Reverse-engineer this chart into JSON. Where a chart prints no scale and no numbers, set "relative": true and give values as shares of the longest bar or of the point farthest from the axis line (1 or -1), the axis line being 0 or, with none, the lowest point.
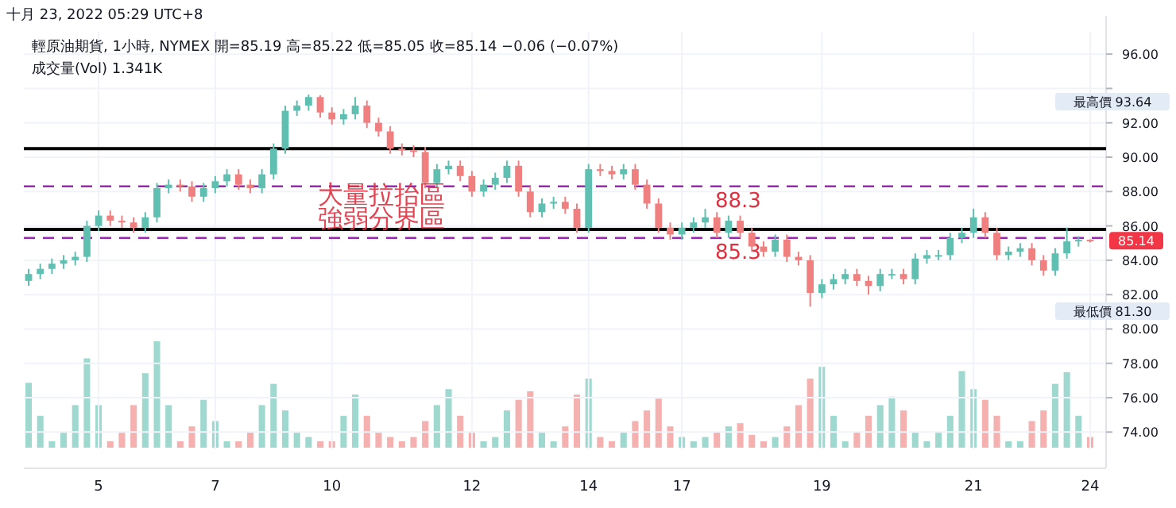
{
  "chart_data": [
    {
      "type": "candlestick",
      "title": "十月 23, 2022 05:29 UTC+8",
      "subtitle": "輕原油期貨, 1小時, NYMEX  開=85.19 高=85.22 低=85.05 收=85.14 −0.06 (−0.07%)",
      "annotations": [
        "成交量(Vol) 1.341K",
        "大量拉抬區",
        "強弱分界區",
        "最高價 93.64",
        "最低價 81.30",
        {
          "text": "85.14",
          "y": 85.14
        }
      ],
      "categories": [
        null,
        null,
        null,
        null,
        null,
        null,
        "5",
        null,
        null,
        null,
        null,
        null,
        null,
        null,
        null,
        null,
        "7",
        null,
        null,
        null,
        null,
        null,
        null,
        null,
        null,
        null,
        "10",
        null,
        null,
        null,
        null,
        null,
        null,
        null,
        null,
        null,
        null,
        null,
        "12",
        null,
        null,
        null,
        null,
        null,
        null,
        null,
        null,
        null,
        "14",
        null,
        null,
        null,
        null,
        null,
        null,
        null,
        "17",
        null,
        null,
        null,
        null,
        null,
        null,
        null,
        null,
        null,
        null,
        null,
        "19",
        null,
        null,
        null,
        null,
        null,
        null,
        null,
        null,
        null,
        null,
        null,
        null,
        "21",
        null,
        null,
        null,
        null,
        null,
        null,
        null,
        null,
        null,
        "24"
      ],
      "ohlc": [
        [
          82.8,
          83.5,
          82.5,
          83.2
        ],
        [
          83.2,
          83.8,
          82.9,
          83.5
        ],
        [
          83.5,
          84.1,
          83.2,
          83.8
        ],
        [
          83.8,
          84.3,
          83.5,
          84.0
        ],
        [
          84.0,
          84.5,
          83.7,
          84.2
        ],
        [
          84.2,
          86.3,
          83.9,
          86.0
        ],
        [
          86.0,
          86.9,
          85.7,
          86.6
        ],
        [
          86.6,
          86.9,
          86.0,
          86.3
        ],
        [
          86.3,
          86.6,
          85.9,
          86.2
        ],
        [
          86.2,
          86.5,
          85.6,
          85.9
        ],
        [
          85.9,
          86.8,
          85.6,
          86.5
        ],
        [
          86.5,
          88.5,
          86.2,
          88.2
        ],
        [
          88.2,
          88.7,
          87.9,
          88.4
        ],
        [
          88.4,
          88.7,
          88.0,
          88.3
        ],
        [
          88.3,
          88.6,
          87.4,
          87.7
        ],
        [
          87.7,
          88.5,
          87.4,
          88.2
        ],
        [
          88.2,
          88.9,
          87.9,
          88.6
        ],
        [
          88.6,
          89.3,
          88.3,
          89.0
        ],
        [
          89.0,
          89.3,
          88.1,
          88.4
        ],
        [
          88.4,
          88.7,
          87.9,
          88.2
        ],
        [
          88.2,
          89.3,
          87.9,
          89.0
        ],
        [
          89.0,
          90.8,
          88.7,
          90.5
        ],
        [
          90.5,
          93.0,
          90.2,
          92.7
        ],
        [
          92.7,
          93.3,
          92.4,
          93.0
        ],
        [
          93.0,
          93.64,
          92.7,
          93.5
        ],
        [
          93.5,
          93.6,
          92.3,
          92.6
        ],
        [
          92.6,
          92.9,
          91.9,
          92.2
        ],
        [
          92.2,
          92.8,
          91.9,
          92.5
        ],
        [
          92.5,
          93.5,
          92.2,
          93.0
        ],
        [
          93.0,
          93.3,
          91.7,
          92.0
        ],
        [
          92.0,
          92.3,
          91.2,
          91.5
        ],
        [
          91.5,
          91.8,
          90.2,
          90.5
        ],
        [
          90.5,
          90.8,
          90.1,
          90.4
        ],
        [
          90.4,
          90.7,
          90.0,
          90.3
        ],
        [
          90.3,
          90.6,
          88.2,
          88.5
        ],
        [
          88.5,
          89.6,
          88.2,
          89.3
        ],
        [
          89.3,
          89.8,
          89.0,
          89.5
        ],
        [
          89.5,
          89.8,
          88.6,
          88.9
        ],
        [
          88.9,
          89.2,
          87.7,
          88.0
        ],
        [
          88.0,
          88.7,
          87.7,
          88.4
        ],
        [
          88.4,
          89.1,
          88.1,
          88.8
        ],
        [
          88.8,
          89.8,
          88.5,
          89.5
        ],
        [
          89.5,
          89.8,
          87.7,
          88.0
        ],
        [
          88.0,
          88.3,
          86.5,
          86.8
        ],
        [
          86.8,
          87.6,
          86.5,
          87.3
        ],
        [
          87.3,
          87.7,
          87.0,
          87.4
        ],
        [
          87.4,
          87.7,
          86.7,
          87.0
        ],
        [
          87.0,
          87.3,
          85.6,
          85.9
        ],
        [
          85.9,
          89.6,
          85.6,
          89.3
        ],
        [
          89.3,
          89.6,
          88.9,
          89.2
        ],
        [
          89.2,
          89.5,
          88.7,
          89.0
        ],
        [
          89.0,
          89.6,
          88.7,
          89.3
        ],
        [
          89.3,
          89.6,
          88.1,
          88.4
        ],
        [
          88.4,
          88.7,
          87.0,
          87.3
        ],
        [
          87.3,
          87.6,
          85.6,
          85.9
        ],
        [
          85.9,
          86.2,
          85.2,
          85.5
        ],
        [
          85.5,
          86.2,
          85.2,
          85.9
        ],
        [
          85.9,
          86.5,
          85.6,
          86.2
        ],
        [
          86.2,
          87.0,
          85.9,
          86.5
        ],
        [
          86.5,
          86.8,
          85.3,
          85.6
        ],
        [
          85.6,
          86.6,
          85.3,
          86.3
        ],
        [
          86.3,
          86.6,
          85.3,
          85.6
        ],
        [
          85.6,
          85.9,
          84.5,
          84.8
        ],
        [
          84.8,
          85.1,
          84.2,
          84.5
        ],
        [
          84.5,
          85.5,
          84.2,
          85.2
        ],
        [
          85.2,
          85.5,
          83.9,
          84.2
        ],
        [
          84.2,
          84.5,
          83.7,
          84.0
        ],
        [
          84.0,
          84.3,
          81.3,
          82.1
        ],
        [
          82.1,
          82.9,
          81.8,
          82.6
        ],
        [
          82.6,
          83.2,
          82.3,
          82.9
        ],
        [
          82.9,
          83.5,
          82.6,
          83.2
        ],
        [
          83.2,
          83.5,
          82.5,
          82.8
        ],
        [
          82.8,
          83.1,
          82.0,
          82.5
        ],
        [
          82.5,
          83.5,
          82.2,
          83.2
        ],
        [
          83.2,
          83.5,
          82.9,
          83.2
        ],
        [
          83.2,
          83.5,
          82.6,
          82.9
        ],
        [
          82.9,
          84.4,
          82.6,
          84.1
        ],
        [
          84.1,
          84.6,
          83.8,
          84.3
        ],
        [
          84.3,
          84.6,
          84.0,
          84.3
        ],
        [
          84.3,
          85.6,
          84.0,
          85.3
        ],
        [
          85.3,
          85.9,
          85.0,
          85.6
        ],
        [
          85.6,
          87.0,
          85.3,
          86.5
        ],
        [
          86.5,
          86.8,
          85.3,
          85.6
        ],
        [
          85.6,
          85.9,
          84.0,
          84.3
        ],
        [
          84.3,
          84.8,
          84.0,
          84.5
        ],
        [
          84.5,
          85.0,
          84.2,
          84.7
        ],
        [
          84.7,
          85.0,
          83.7,
          84.0
        ],
        [
          84.0,
          84.3,
          83.1,
          83.4
        ],
        [
          83.4,
          84.7,
          83.1,
          84.4
        ],
        [
          84.4,
          85.9,
          84.1,
          85.1
        ],
        [
          85.1,
          85.4,
          84.8,
          85.19
        ],
        [
          85.19,
          85.22,
          85.05,
          85.14
        ]
      ],
      "colors": [
        "#5fbfb0",
        "#5fbfb0",
        "#5fbfb0",
        "#5fbfb0",
        "#5fbfb0",
        "#5fbfb0",
        "#5fbfb0",
        "#f08080",
        "#f08080",
        "#f08080",
        "#5fbfb0",
        "#5fbfb0",
        "#5fbfb0",
        "#f08080",
        "#f08080",
        "#5fbfb0",
        "#5fbfb0",
        "#5fbfb0",
        "#f08080",
        "#f08080",
        "#5fbfb0",
        "#5fbfb0",
        "#5fbfb0",
        "#5fbfb0",
        "#5fbfb0",
        "#f08080",
        "#f08080",
        "#5fbfb0",
        "#5fbfb0",
        "#f08080",
        "#f08080",
        "#f08080",
        "#f08080",
        "#f08080",
        "#f08080",
        "#5fbfb0",
        "#5fbfb0",
        "#f08080",
        "#f08080",
        "#5fbfb0",
        "#5fbfb0",
        "#5fbfb0",
        "#f08080",
        "#f08080",
        "#5fbfb0",
        "#5fbfb0",
        "#f08080",
        "#f08080",
        "#5fbfb0",
        "#f08080",
        "#f08080",
        "#5fbfb0",
        "#f08080",
        "#f08080",
        "#f08080",
        "#f08080",
        "#5fbfb0",
        "#5fbfb0",
        "#5fbfb0",
        "#f08080",
        "#5fbfb0",
        "#f08080",
        "#f08080",
        "#f08080",
        "#5fbfb0",
        "#f08080",
        "#f08080",
        "#f08080",
        "#5fbfb0",
        "#5fbfb0",
        "#5fbfb0",
        "#f08080",
        "#f08080",
        "#5fbfb0",
        "#5fbfb0",
        "#f08080",
        "#5fbfb0",
        "#5fbfb0",
        "#5fbfb0",
        "#5fbfb0",
        "#5fbfb0",
        "#5fbfb0",
        "#f08080",
        "#f08080",
        "#5fbfb0",
        "#5fbfb0",
        "#f08080",
        "#f08080",
        "#5fbfb0",
        "#5fbfb0",
        "#5fbfb0",
        "#f08080"
      ],
      "ylim": [
        73,
        97.3
      ],
      "yticks": [
        {
          "value": 74,
          "label": "74.00"
        },
        {
          "value": 76,
          "label": "76.00"
        },
        {
          "value": 78,
          "label": "78.00"
        },
        {
          "value": 80,
          "label": "80.00"
        },
        {
          "value": 82,
          "label": "82.00"
        },
        {
          "value": 84,
          "label": "84.00"
        },
        {
          "value": 86,
          "label": "86.00"
        },
        {
          "value": 88,
          "label": "88.00"
        },
        {
          "value": 90,
          "label": "90.00"
        },
        {
          "value": 92,
          "label": "92.00"
        },
        {
          "value": 94,
          "label": null
        },
        {
          "value": 96,
          "label": "96.00"
        }
      ],
      "ref_lines": [
        {
          "axis": "y",
          "value": 88.3,
          "label": "88.3",
          "color": "#9c27b0",
          "line_style": "dashed"
        },
        {
          "axis": "y",
          "value": 85.3,
          "label": "85.3",
          "color": "#9c27b0",
          "line_style": "dashed"
        },
        {
          "axis": "y",
          "value": 85.8,
          "color": "#000000",
          "line_style": "solid"
        },
        {
          "axis": "y",
          "value": 90.5,
          "color": "#000000",
          "line_style": "solid"
        }
      ],
      "grid": true
    },
    {
      "type": "bar",
      "relative": true,
      "categories": [
        null,
        null,
        null,
        null,
        null,
        null,
        null,
        null,
        null,
        null,
        null,
        null,
        null,
        null,
        null,
        null,
        null,
        null,
        null,
        null,
        null,
        null,
        null,
        null,
        null,
        null,
        null,
        null,
        null,
        null,
        null,
        null,
        null,
        null,
        null,
        null,
        null,
        null,
        null,
        null,
        null,
        null,
        null,
        null,
        null,
        null,
        null,
        null,
        null,
        null,
        null,
        null,
        null,
        null,
        null,
        null,
        null,
        null,
        null,
        null,
        null,
        null,
        null,
        null,
        null,
        null,
        null,
        null,
        null,
        null,
        null,
        null,
        null,
        null,
        null,
        null,
        null,
        null,
        null,
        null,
        null,
        null,
        null,
        null,
        null,
        null,
        null,
        null,
        null,
        null,
        null,
        null
      ],
      "values": [
        0.61,
        0.3,
        0.06,
        0.15,
        0.4,
        0.84,
        0.4,
        0.06,
        0.15,
        0.4,
        0.7,
        1.0,
        0.4,
        0.06,
        0.2,
        0.45,
        0.25,
        0.06,
        0.06,
        0.15,
        0.4,
        0.6,
        0.35,
        0.15,
        0.1,
        0.06,
        0.06,
        0.3,
        0.5,
        0.3,
        0.15,
        0.1,
        0.06,
        0.1,
        0.25,
        0.4,
        0.55,
        0.3,
        0.15,
        0.06,
        0.1,
        0.35,
        0.45,
        0.53,
        0.15,
        0.06,
        0.2,
        0.5,
        0.65,
        0.1,
        0.06,
        0.15,
        0.25,
        0.35,
        0.46,
        0.2,
        0.1,
        0.06,
        0.1,
        0.15,
        0.2,
        0.23,
        0.12,
        0.06,
        0.1,
        0.2,
        0.4,
        0.65,
        0.76,
        0.3,
        0.06,
        0.15,
        0.3,
        0.4,
        0.48,
        0.35,
        0.15,
        0.06,
        0.15,
        0.3,
        0.72,
        0.55,
        0.45,
        0.3,
        0.06,
        0.06,
        0.25,
        0.35,
        0.6,
        0.71,
        0.3,
        0.1
      ],
      "colors": [
        "#9fd8cf",
        "#9fd8cf",
        "#9fd8cf",
        "#9fd8cf",
        "#9fd8cf",
        "#9fd8cf",
        "#9fd8cf",
        "#f5b0b0",
        "#f5b0b0",
        "#f5b0b0",
        "#9fd8cf",
        "#9fd8cf",
        "#9fd8cf",
        "#f5b0b0",
        "#f5b0b0",
        "#9fd8cf",
        "#9fd8cf",
        "#9fd8cf",
        "#f5b0b0",
        "#f5b0b0",
        "#9fd8cf",
        "#9fd8cf",
        "#9fd8cf",
        "#9fd8cf",
        "#9fd8cf",
        "#f5b0b0",
        "#f5b0b0",
        "#9fd8cf",
        "#9fd8cf",
        "#f5b0b0",
        "#f5b0b0",
        "#f5b0b0",
        "#f5b0b0",
        "#f5b0b0",
        "#f5b0b0",
        "#9fd8cf",
        "#9fd8cf",
        "#f5b0b0",
        "#f5b0b0",
        "#9fd8cf",
        "#9fd8cf",
        "#9fd8cf",
        "#f5b0b0",
        "#f5b0b0",
        "#9fd8cf",
        "#9fd8cf",
        "#f5b0b0",
        "#f5b0b0",
        "#9fd8cf",
        "#f5b0b0",
        "#f5b0b0",
        "#9fd8cf",
        "#f5b0b0",
        "#f5b0b0",
        "#f5b0b0",
        "#f5b0b0",
        "#9fd8cf",
        "#9fd8cf",
        "#9fd8cf",
        "#f5b0b0",
        "#9fd8cf",
        "#f5b0b0",
        "#f5b0b0",
        "#f5b0b0",
        "#9fd8cf",
        "#f5b0b0",
        "#f5b0b0",
        "#f5b0b0",
        "#9fd8cf",
        "#9fd8cf",
        "#9fd8cf",
        "#f5b0b0",
        "#f5b0b0",
        "#9fd8cf",
        "#9fd8cf",
        "#f5b0b0",
        "#9fd8cf",
        "#9fd8cf",
        "#9fd8cf",
        "#9fd8cf",
        "#9fd8cf",
        "#9fd8cf",
        "#f5b0b0",
        "#f5b0b0",
        "#9fd8cf",
        "#9fd8cf",
        "#f5b0b0",
        "#f5b0b0",
        "#9fd8cf",
        "#9fd8cf",
        "#9fd8cf",
        "#f5b0b0"
      ]
    }
  ]
}
